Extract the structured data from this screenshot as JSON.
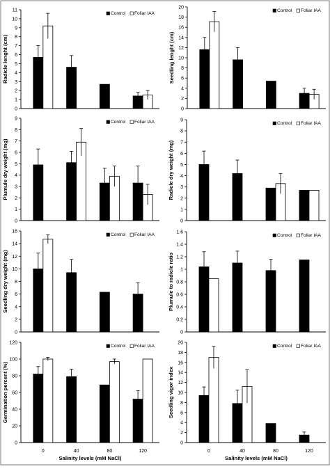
{
  "figure": {
    "x_categories": [
      "0",
      "40",
      "80",
      "120"
    ],
    "x_axis_title": "Salinity levels (mM NaCl)",
    "legend_control": "Control",
    "legend_foliar": "Foliar IAA",
    "colors": {
      "control": "#000000",
      "foliar": "#ffffff",
      "stroke": "#000000"
    }
  },
  "chart_data": [
    {
      "type": "bar",
      "id": "radicle-length",
      "ylabel": "Radicle lenght (cm)",
      "ylim": [
        0,
        11
      ],
      "yticks": [
        0,
        1,
        2,
        3,
        4,
        5,
        6,
        7,
        8,
        9,
        10,
        11
      ],
      "categories": [
        "0",
        "40",
        "80",
        "120"
      ],
      "series": [
        {
          "name": "Control",
          "values": [
            5.7,
            4.6,
            2.7,
            1.4
          ],
          "errors": [
            1.3,
            1.3,
            0,
            0.4
          ]
        },
        {
          "name": "Foliar IAA",
          "values": [
            9.2,
            0,
            0,
            1.5
          ],
          "errors": [
            1.4,
            0,
            0,
            0.5
          ]
        }
      ],
      "legend": "top-right",
      "show_x_ticks": false
    },
    {
      "type": "bar",
      "id": "seedling-length",
      "ylabel": "Seedling lenght (cm)",
      "ylim": [
        0,
        20
      ],
      "yticks": [
        0,
        2,
        4,
        6,
        8,
        10,
        12,
        14,
        16,
        18,
        20
      ],
      "categories": [
        "0",
        "40",
        "80",
        "120"
      ],
      "series": [
        {
          "name": "Control",
          "values": [
            11.6,
            9.6,
            5.4,
            3.0
          ],
          "errors": [
            2.4,
            2.4,
            0,
            1.0
          ]
        },
        {
          "name": "Foliar IAA",
          "values": [
            17.1,
            0,
            0,
            2.8
          ],
          "errors": [
            2.0,
            0,
            0,
            1.0
          ]
        }
      ],
      "legend": "top-right",
      "show_x_ticks": false
    },
    {
      "type": "bar",
      "id": "plumule-dry-weight",
      "ylabel": "Plumule dry weight (mg)",
      "ylim": [
        0,
        9
      ],
      "yticks": [
        0,
        1,
        2,
        3,
        4,
        5,
        6,
        7,
        8,
        9
      ],
      "categories": [
        "0",
        "40",
        "80",
        "120"
      ],
      "series": [
        {
          "name": "Control",
          "values": [
            4.9,
            5.1,
            3.3,
            3.3
          ],
          "errors": [
            1.4,
            1.0,
            1.3,
            1.5
          ]
        },
        {
          "name": "Foliar IAA",
          "values": [
            0,
            6.9,
            3.9,
            2.3
          ],
          "errors": [
            0,
            1.2,
            0.9,
            0.9
          ]
        }
      ],
      "legend": "top-right",
      "show_x_ticks": false
    },
    {
      "type": "bar",
      "id": "radicle-dry-weight",
      "ylabel": "Radicle dry weight (mg)",
      "ylim": [
        0,
        9
      ],
      "yticks": [
        0,
        1,
        2,
        3,
        4,
        5,
        6,
        7,
        8,
        9
      ],
      "categories": [
        "0",
        "40",
        "80",
        "120"
      ],
      "series": [
        {
          "name": "Control",
          "values": [
            5.0,
            4.2,
            2.9,
            2.7
          ],
          "errors": [
            1.2,
            1.2,
            0,
            0
          ]
        },
        {
          "name": "Foliar IAA",
          "values": [
            0,
            0,
            3.3,
            2.7
          ],
          "errors": [
            0,
            0,
            0.9,
            0
          ]
        }
      ],
      "legend": "top-right",
      "show_x_ticks": false
    },
    {
      "type": "bar",
      "id": "seedling-dry-weight",
      "ylabel": "Seedling dry weight (mg)",
      "ylim": [
        0,
        16
      ],
      "yticks": [
        0,
        2,
        4,
        6,
        8,
        10,
        12,
        14,
        16
      ],
      "categories": [
        "0",
        "40",
        "80",
        "120"
      ],
      "series": [
        {
          "name": "Control",
          "values": [
            10.0,
            9.4,
            6.3,
            6.0
          ],
          "errors": [
            2.5,
            2.1,
            0,
            1.8
          ]
        },
        {
          "name": "Foliar IAA",
          "values": [
            14.7,
            0,
            0,
            0
          ],
          "errors": [
            0.7,
            0,
            0,
            0
          ]
        }
      ],
      "legend": "top-right",
      "show_x_ticks": false
    },
    {
      "type": "bar",
      "id": "plumule-to-radicle-ratio",
      "ylabel": "Plumule to radicle ratio",
      "ylim": [
        0,
        1.6
      ],
      "yticks": [
        0,
        0.2,
        0.4,
        0.6,
        0.8,
        1,
        1.2,
        1.4,
        1.6
      ],
      "categories": [
        "0",
        "40",
        "80",
        "120"
      ],
      "series": [
        {
          "name": "Control",
          "values": [
            1.04,
            1.1,
            0.98,
            1.15
          ],
          "errors": [
            0.24,
            0.19,
            0.18,
            0
          ]
        },
        {
          "name": "Foliar IAA",
          "values": [
            0.85,
            0,
            0,
            0
          ],
          "errors": [
            0,
            0,
            0,
            0
          ]
        }
      ],
      "legend": "top-right",
      "show_x_ticks": false
    },
    {
      "type": "bar",
      "id": "germination-percent",
      "ylabel": "Germination percent (%)",
      "ylim": [
        0,
        120
      ],
      "yticks": [
        0,
        20,
        40,
        60,
        80,
        100,
        120
      ],
      "categories": [
        "0",
        "40",
        "80",
        "120"
      ],
      "series": [
        {
          "name": "Control",
          "values": [
            82,
            79,
            69,
            52
          ],
          "errors": [
            9,
            9,
            0,
            10
          ]
        },
        {
          "name": "Foliar IAA",
          "values": [
            100,
            0,
            97,
            100
          ],
          "errors": [
            2,
            0,
            3,
            0
          ]
        }
      ],
      "legend": "top-right",
      "show_x_ticks": true
    },
    {
      "type": "bar",
      "id": "seedling-vigor-index",
      "ylabel": "Seedling vigor index",
      "ylim": [
        0,
        20
      ],
      "yticks": [
        0,
        2,
        4,
        6,
        8,
        10,
        12,
        14,
        16,
        18,
        20
      ],
      "categories": [
        "0",
        "40",
        "80",
        "120"
      ],
      "series": [
        {
          "name": "Control",
          "values": [
            9.4,
            7.8,
            3.8,
            1.5
          ],
          "errors": [
            1.7,
            2.7,
            0,
            0.6
          ]
        },
        {
          "name": "Foliar IAA",
          "values": [
            17.0,
            11.2,
            0,
            0
          ],
          "errors": [
            2.2,
            3.3,
            0,
            0
          ]
        }
      ],
      "legend": "top-right",
      "show_x_ticks": true
    }
  ]
}
